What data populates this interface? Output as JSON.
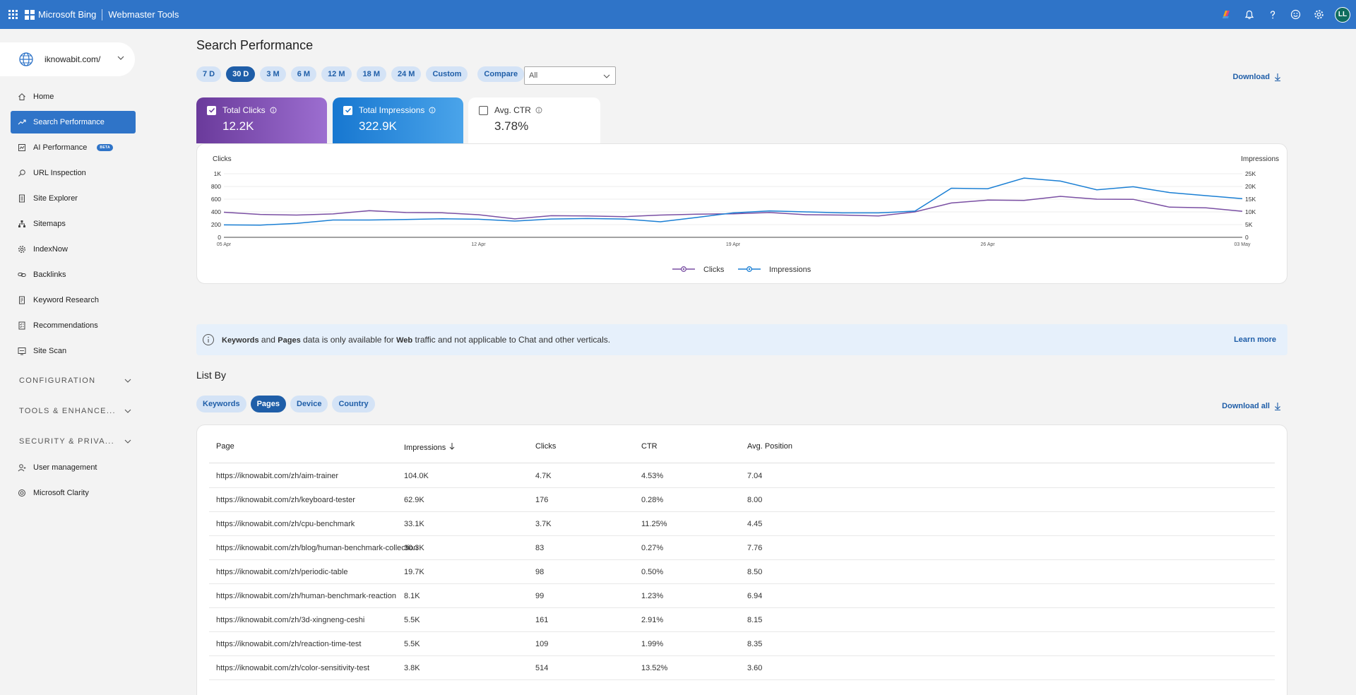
{
  "topbar": {
    "brand": "Microsoft Bing",
    "product": "Webmaster Tools",
    "avatar_initials": "LL",
    "icons": [
      "copilot-icon",
      "bell-icon",
      "help-icon",
      "feedback-icon",
      "settings-icon"
    ]
  },
  "sidebar": {
    "site": "iknowabit.com/",
    "items": [
      {
        "label": "Home",
        "icon": "home-icon",
        "active": false
      },
      {
        "label": "Search Performance",
        "icon": "trend-icon",
        "active": true
      },
      {
        "label": "AI Performance",
        "icon": "ai-icon",
        "active": false,
        "badge": "BETA"
      },
      {
        "label": "URL Inspection",
        "icon": "search-icon",
        "active": false
      },
      {
        "label": "Site Explorer",
        "icon": "document-icon",
        "active": false
      },
      {
        "label": "Sitemaps",
        "icon": "sitemap-icon",
        "active": false
      },
      {
        "label": "IndexNow",
        "icon": "gear-icon",
        "active": false
      },
      {
        "label": "Backlinks",
        "icon": "link-icon",
        "active": false
      },
      {
        "label": "Keyword Research",
        "icon": "document-icon",
        "active": false
      },
      {
        "label": "Recommendations",
        "icon": "checklist-icon",
        "active": false
      },
      {
        "label": "Site Scan",
        "icon": "scan-icon",
        "active": false
      }
    ],
    "groups": [
      "CONFIGURATION",
      "TOOLS & ENHANCE...",
      "SECURITY & PRIVA..."
    ],
    "bottom_items": [
      {
        "label": "User management",
        "icon": "user-icon"
      },
      {
        "label": "Microsoft Clarity",
        "icon": "clarity-icon"
      }
    ]
  },
  "main": {
    "title": "Search Performance",
    "ranges": [
      "7 D",
      "30 D",
      "3 M",
      "6 M",
      "12 M",
      "18 M",
      "24 M",
      "Custom"
    ],
    "active_range": "30 D",
    "compare_label": "Compare",
    "compare_select": "All",
    "download_label": "Download",
    "metrics": {
      "clicks": {
        "label": "Total Clicks",
        "value": "12.2K",
        "checked": true
      },
      "impressions": {
        "label": "Total Impressions",
        "value": "322.9K",
        "checked": true
      },
      "ctr": {
        "label": "Avg. CTR",
        "value": "3.78%",
        "checked": false
      }
    },
    "notice": {
      "keywords": "Keywords",
      "and": " and ",
      "pages": "Pages",
      "mid": " data is only available for ",
      "web": "Web",
      "rest": " traffic and not applicable to Chat and other verticals.",
      "learn_more": "Learn more"
    },
    "list_by": "List By",
    "tabs": [
      "Keywords",
      "Pages",
      "Device",
      "Country"
    ],
    "active_tab": "Pages",
    "download_all_label": "Download all",
    "table": {
      "headers": [
        "Page",
        "Impressions",
        "Clicks",
        "CTR",
        "Avg. Position"
      ],
      "rows": [
        [
          "https://iknowabit.com/zh/aim-trainer",
          "104.0K",
          "4.7K",
          "4.53%",
          "7.04"
        ],
        [
          "https://iknowabit.com/zh/keyboard-tester",
          "62.9K",
          "176",
          "0.28%",
          "8.00"
        ],
        [
          "https://iknowabit.com/zh/cpu-benchmark",
          "33.1K",
          "3.7K",
          "11.25%",
          "4.45"
        ],
        [
          "https://iknowabit.com/zh/blog/human-benchmark-collection",
          "30.3K",
          "83",
          "0.27%",
          "7.76"
        ],
        [
          "https://iknowabit.com/zh/periodic-table",
          "19.7K",
          "98",
          "0.50%",
          "8.50"
        ],
        [
          "https://iknowabit.com/zh/human-benchmark-reaction",
          "8.1K",
          "99",
          "1.23%",
          "6.94"
        ],
        [
          "https://iknowabit.com/zh/3d-xingneng-ceshi",
          "5.5K",
          "161",
          "2.91%",
          "8.15"
        ],
        [
          "https://iknowabit.com/zh/reaction-time-test",
          "5.5K",
          "109",
          "1.99%",
          "8.35"
        ],
        [
          "https://iknowabit.com/zh/color-sensitivity-test",
          "3.8K",
          "514",
          "13.52%",
          "3.60"
        ]
      ]
    }
  },
  "chart_data": {
    "type": "line",
    "title": "",
    "xlabel": "",
    "ylabel": "Clicks",
    "y2label": "Impressions",
    "x": [
      "05 Apr",
      "06 Apr",
      "07 Apr",
      "08 Apr",
      "09 Apr",
      "10 Apr",
      "11 Apr",
      "12 Apr",
      "13 Apr",
      "14 Apr",
      "15 Apr",
      "16 Apr",
      "17 Apr",
      "18 Apr",
      "19 Apr",
      "20 Apr",
      "21 Apr",
      "22 Apr",
      "23 Apr",
      "24 Apr",
      "25 Apr",
      "26 Apr",
      "27 Apr",
      "28 Apr",
      "29 Apr",
      "30 Apr",
      "01 May",
      "02 May",
      "03 May"
    ],
    "x_ticks": [
      "05 Apr",
      "12 Apr",
      "19 Apr",
      "26 Apr",
      "03 May"
    ],
    "y_ticks": [
      "0",
      "200",
      "400",
      "600",
      "800",
      "1K"
    ],
    "y2_ticks": [
      "0",
      "5K",
      "10K",
      "15K",
      "20K",
      "25K"
    ],
    "ylim": [
      0,
      1000
    ],
    "y2lim": [
      0,
      25000
    ],
    "series": [
      {
        "name": "Clicks",
        "axis": "left",
        "color": "#7a4fa3",
        "values": [
          395,
          360,
          350,
          368,
          420,
          390,
          385,
          355,
          290,
          340,
          335,
          325,
          350,
          365,
          370,
          390,
          355,
          350,
          335,
          400,
          540,
          585,
          580,
          645,
          600,
          598,
          475,
          465,
          410
        ]
      },
      {
        "name": "Impressions",
        "axis": "right",
        "color": "#1a7fd4",
        "values": [
          4900,
          4800,
          5500,
          6800,
          6800,
          7000,
          7300,
          7100,
          6400,
          7200,
          7400,
          7200,
          6100,
          7800,
          9600,
          10400,
          10000,
          9600,
          9600,
          10300,
          19300,
          19100,
          23300,
          22100,
          18700,
          19900,
          17600,
          16400,
          15200
        ]
      }
    ],
    "grid": true,
    "legend": "bottom"
  }
}
